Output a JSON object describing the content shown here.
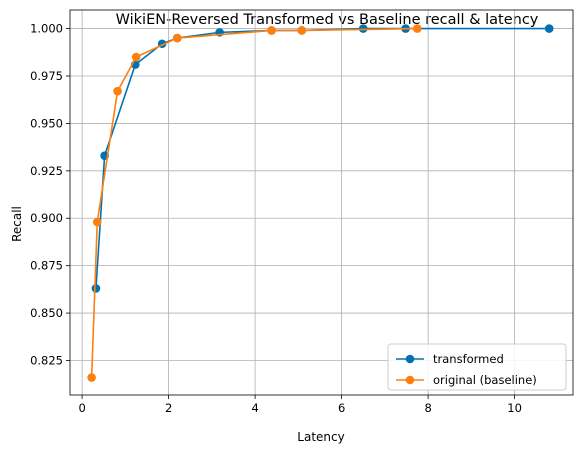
{
  "chart_data": {
    "type": "line",
    "title": "WikiEN-Reversed Transformed vs Baseline recall & latency",
    "xlabel": "Latency",
    "ylabel": "Recall",
    "xlim": [
      -0.28,
      11.35
    ],
    "ylim": [
      0.8068,
      1.0098
    ],
    "xticks": [
      0,
      2,
      4,
      6,
      8,
      10
    ],
    "xtick_labels": [
      "0",
      "2",
      "4",
      "6",
      "8",
      "10"
    ],
    "yticks": [
      0.825,
      0.85,
      0.875,
      0.9,
      0.925,
      0.95,
      0.975,
      1.0
    ],
    "ytick_labels": [
      "0.825",
      "0.850",
      "0.875",
      "0.900",
      "0.925",
      "0.950",
      "0.975",
      "1.000"
    ],
    "grid": true,
    "legend_position": "lower-right",
    "series": [
      {
        "name": "transformed",
        "color": "#0072B2",
        "marker": "circle",
        "x": [
          0.32,
          0.52,
          1.23,
          1.85,
          2.2,
          3.18,
          4.38,
          5.08,
          6.5,
          7.48,
          10.8
        ],
        "y": [
          0.863,
          0.933,
          0.981,
          0.992,
          0.995,
          0.998,
          0.999,
          0.999,
          1.0,
          1.0,
          1.0
        ]
      },
      {
        "name": "original (baseline)",
        "color": "#FF7F0E",
        "marker": "circle",
        "x": [
          0.22,
          0.35,
          0.82,
          1.25,
          2.2,
          4.38,
          5.08,
          7.75
        ],
        "y": [
          0.816,
          0.898,
          0.967,
          0.985,
          0.995,
          0.999,
          0.999,
          1.0
        ]
      }
    ]
  }
}
